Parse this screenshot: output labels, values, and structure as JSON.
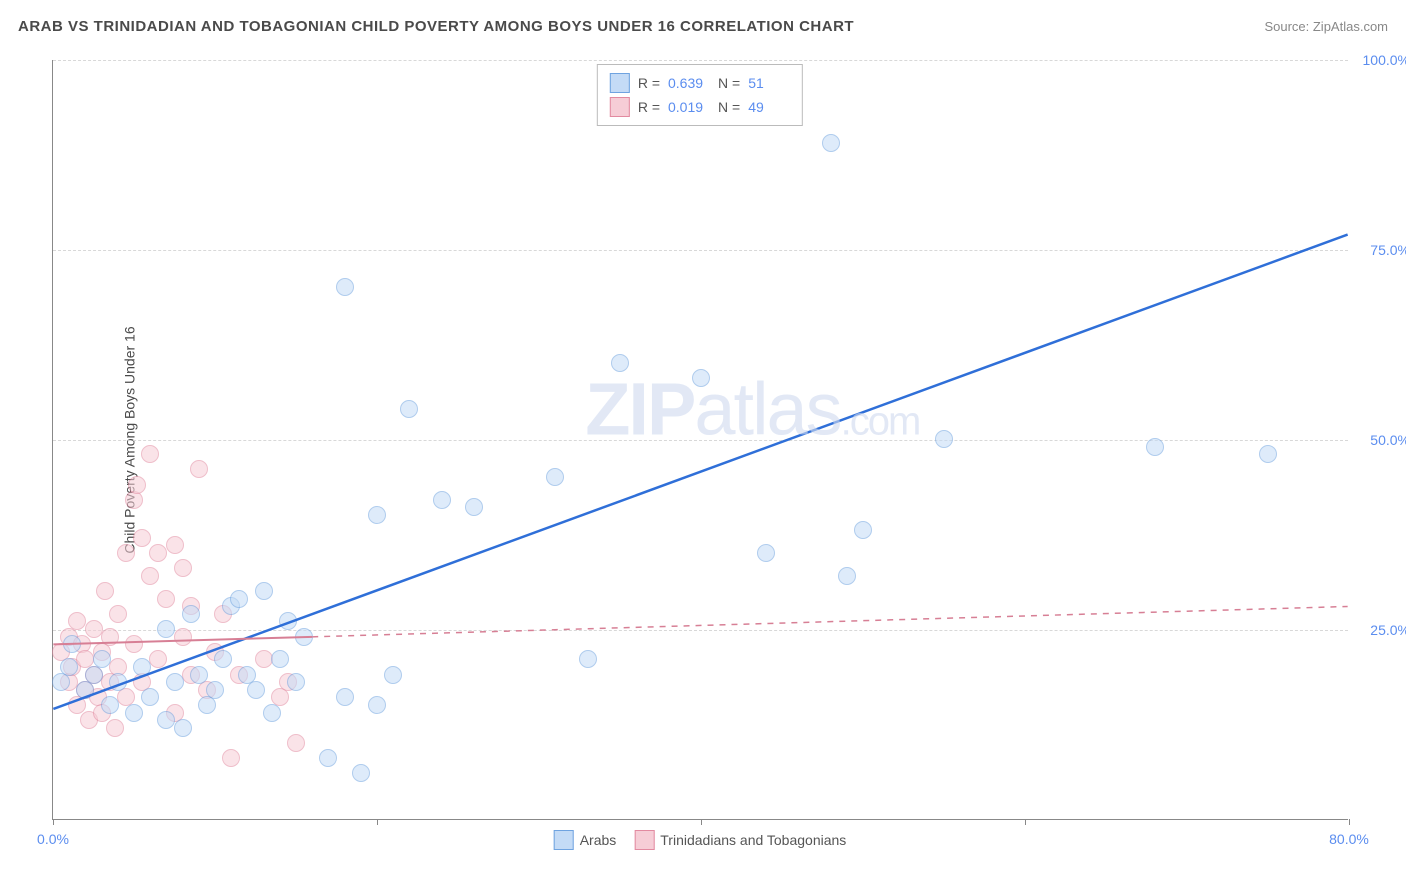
{
  "header": {
    "title": "ARAB VS TRINIDADIAN AND TOBAGONIAN CHILD POVERTY AMONG BOYS UNDER 16 CORRELATION CHART",
    "source": "Source: ZipAtlas.com"
  },
  "ylabel": "Child Poverty Among Boys Under 16",
  "watermark": {
    "bold": "ZIP",
    "rest": "atlas"
  },
  "chart": {
    "type": "scatter",
    "xlim": [
      0,
      80
    ],
    "ylim": [
      0,
      100
    ],
    "background_color": "#ffffff",
    "grid_color": "#d8d8d8",
    "axis_color": "#888888",
    "tick_color": "#5b8def",
    "tick_fontsize": 14,
    "marker_radius": 9,
    "marker_opacity": 0.55,
    "xticks": [
      {
        "v": 0,
        "label": "0.0%"
      },
      {
        "v": 20,
        "label": ""
      },
      {
        "v": 40,
        "label": ""
      },
      {
        "v": 60,
        "label": ""
      },
      {
        "v": 80,
        "label": "80.0%"
      }
    ],
    "yticks": [
      {
        "v": 25,
        "label": "25.0%"
      },
      {
        "v": 50,
        "label": "50.0%"
      },
      {
        "v": 75,
        "label": "75.0%"
      },
      {
        "v": 100,
        "label": "100.0%"
      }
    ],
    "series": [
      {
        "name": "Arabs",
        "fill": "#c4dbf6",
        "stroke": "#6fa3e0",
        "line_color": "#2f6fd8",
        "line_width": 2.5,
        "trend": {
          "x1": 0,
          "y1": 14.5,
          "x2": 80,
          "y2": 77
        },
        "R": "0.639",
        "N": "51",
        "points": [
          [
            0.5,
            18
          ],
          [
            1,
            20
          ],
          [
            1.2,
            23
          ],
          [
            2,
            17
          ],
          [
            2.5,
            19
          ],
          [
            3,
            21
          ],
          [
            3.5,
            15
          ],
          [
            4,
            18
          ],
          [
            5,
            14
          ],
          [
            5.5,
            20
          ],
          [
            6,
            16
          ],
          [
            7,
            13
          ],
          [
            7,
            25
          ],
          [
            7.5,
            18
          ],
          [
            8,
            12
          ],
          [
            8.5,
            27
          ],
          [
            9,
            19
          ],
          [
            9.5,
            15
          ],
          [
            10,
            17
          ],
          [
            10.5,
            21
          ],
          [
            11,
            28
          ],
          [
            11.5,
            29
          ],
          [
            12,
            19
          ],
          [
            12.5,
            17
          ],
          [
            13,
            30
          ],
          [
            13.5,
            14
          ],
          [
            14,
            21
          ],
          [
            14.5,
            26
          ],
          [
            15,
            18
          ],
          [
            15.5,
            24
          ],
          [
            17,
            8
          ],
          [
            18,
            70
          ],
          [
            18,
            16
          ],
          [
            19,
            6
          ],
          [
            20,
            40
          ],
          [
            20,
            15
          ],
          [
            21,
            19
          ],
          [
            22,
            54
          ],
          [
            24,
            42
          ],
          [
            26,
            41
          ],
          [
            31,
            45
          ],
          [
            33,
            21
          ],
          [
            35,
            60
          ],
          [
            40,
            58
          ],
          [
            44,
            35
          ],
          [
            48,
            89
          ],
          [
            49,
            32
          ],
          [
            50,
            38
          ],
          [
            55,
            50
          ],
          [
            68,
            49
          ],
          [
            75,
            48
          ]
        ]
      },
      {
        "name": "Trinidadians and Tobagonians",
        "fill": "#f6cdd6",
        "stroke": "#e28aa0",
        "line_color": "#d77f95",
        "line_width": 2,
        "trend": {
          "x1": 0,
          "y1": 23,
          "x2": 16,
          "y2": 24
        },
        "trend_dash": {
          "x1": 16,
          "y1": 24,
          "x2": 80,
          "y2": 28
        },
        "R": "0.019",
        "N": "49",
        "points": [
          [
            0.5,
            22
          ],
          [
            1,
            18
          ],
          [
            1,
            24
          ],
          [
            1.2,
            20
          ],
          [
            1.5,
            15
          ],
          [
            1.5,
            26
          ],
          [
            1.8,
            23
          ],
          [
            2,
            17
          ],
          [
            2,
            21
          ],
          [
            2.2,
            13
          ],
          [
            2.5,
            19
          ],
          [
            2.5,
            25
          ],
          [
            2.8,
            16
          ],
          [
            3,
            22
          ],
          [
            3,
            14
          ],
          [
            3.2,
            30
          ],
          [
            3.5,
            18
          ],
          [
            3.5,
            24
          ],
          [
            3.8,
            12
          ],
          [
            4,
            20
          ],
          [
            4,
            27
          ],
          [
            4.5,
            35
          ],
          [
            4.5,
            16
          ],
          [
            5,
            23
          ],
          [
            5,
            42
          ],
          [
            5.2,
            44
          ],
          [
            5.5,
            18
          ],
          [
            5.5,
            37
          ],
          [
            6,
            48
          ],
          [
            6,
            32
          ],
          [
            6.5,
            21
          ],
          [
            6.5,
            35
          ],
          [
            7,
            29
          ],
          [
            7.5,
            36
          ],
          [
            7.5,
            14
          ],
          [
            8,
            24
          ],
          [
            8,
            33
          ],
          [
            8.5,
            19
          ],
          [
            8.5,
            28
          ],
          [
            9,
            46
          ],
          [
            9.5,
            17
          ],
          [
            10,
            22
          ],
          [
            10.5,
            27
          ],
          [
            11,
            8
          ],
          [
            11.5,
            19
          ],
          [
            13,
            21
          ],
          [
            14,
            16
          ],
          [
            15,
            10
          ],
          [
            14.5,
            18
          ]
        ]
      }
    ]
  },
  "legend_bottom": [
    {
      "label": "Arabs",
      "fill": "#c4dbf6",
      "stroke": "#6fa3e0"
    },
    {
      "label": "Trinidadians and Tobagonians",
      "fill": "#f6cdd6",
      "stroke": "#e28aa0"
    }
  ]
}
